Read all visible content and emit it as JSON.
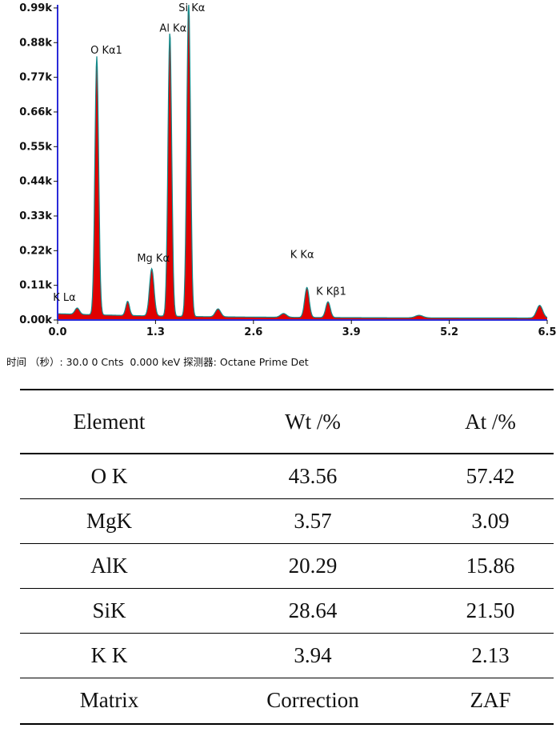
{
  "chart_data": {
    "type": "line",
    "xlim": [
      0,
      6.5
    ],
    "ylim": [
      0,
      1000
    ],
    "x_ticks": [
      "0.0",
      "1.3",
      "2.6",
      "3.9",
      "5.2",
      "6.5"
    ],
    "y_ticks": [
      "0.00k",
      "0.11k",
      "0.22k",
      "0.33k",
      "0.44k",
      "0.55k",
      "0.66k",
      "0.77k",
      "0.88k",
      "0.99k"
    ],
    "peaks": [
      {
        "label": "K  Lα",
        "x": 0.26,
        "y": 20
      },
      {
        "label": "O  Kα1",
        "x": 0.52,
        "y": 820
      },
      {
        "label": "Mg  Kα",
        "x": 1.25,
        "y": 150
      },
      {
        "label": "Al  Kα",
        "x": 1.49,
        "y": 900
      },
      {
        "label": "Si  Kα",
        "x": 1.74,
        "y": 1000
      },
      {
        "label": "K  Kα",
        "x": 3.31,
        "y": 95
      },
      {
        "label": "K  Kβ1",
        "x": 3.59,
        "y": 50
      }
    ],
    "fill_color": "#e00000",
    "line_color": "#138a8a",
    "axis_color": "#2b2bd9"
  },
  "acquisition_line": "时间 （秒）: 30.0 0 Cnts  0.000 keV 探测器: Octane Prime Det",
  "table": {
    "headers": [
      "Element",
      "Wt /%",
      "At /%"
    ],
    "rows": [
      [
        "O K",
        "43.56",
        "57.42"
      ],
      [
        "MgK",
        "3.57",
        "3.09"
      ],
      [
        "AlK",
        "20.29",
        "15.86"
      ],
      [
        "SiK",
        "28.64",
        "21.50"
      ],
      [
        "K K",
        "3.94",
        "2.13"
      ],
      [
        "Matrix",
        "Correction",
        "ZAF"
      ]
    ]
  }
}
